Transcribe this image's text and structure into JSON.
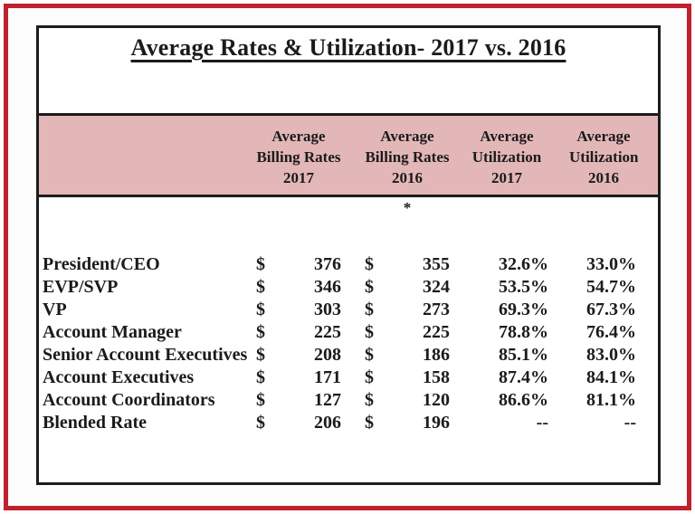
{
  "title": "Average Rates & Utilization- 2017 vs. 2016",
  "colors": {
    "frame_red": "#c0212e",
    "header_pink": "#e3b6b7",
    "line_black": "#1c1c1c"
  },
  "table": {
    "currency_symbol": "$",
    "footnote_marker": "*",
    "header": {
      "col1": [
        "Average",
        "Billing Rates",
        "2017"
      ],
      "col2": [
        "Average",
        "Billing Rates",
        "2016"
      ],
      "col3": [
        "Average",
        "Utilization",
        "2017"
      ],
      "col4": [
        "Average",
        "Utilization",
        "2016"
      ]
    },
    "rows": [
      {
        "label": "President/CEO",
        "rate_2017": "376",
        "rate_2016": "355",
        "util_2017": "32.6%",
        "util_2016": "33.0%"
      },
      {
        "label": "EVP/SVP",
        "rate_2017": "346",
        "rate_2016": "324",
        "util_2017": "53.5%",
        "util_2016": "54.7%"
      },
      {
        "label": "VP",
        "rate_2017": "303",
        "rate_2016": "273",
        "util_2017": "69.3%",
        "util_2016": "67.3%"
      },
      {
        "label": "Account Manager",
        "rate_2017": "225",
        "rate_2016": "225",
        "util_2017": "78.8%",
        "util_2016": "76.4%"
      },
      {
        "label": "Senior Account Executives",
        "rate_2017": "208",
        "rate_2016": "186",
        "util_2017": "85.1%",
        "util_2016": "83.0%"
      },
      {
        "label": "Account Executives",
        "rate_2017": "171",
        "rate_2016": "158",
        "util_2017": "87.4%",
        "util_2016": "84.1%"
      },
      {
        "label": "Account Coordinators",
        "rate_2017": "127",
        "rate_2016": "120",
        "util_2017": "86.6%",
        "util_2016": "81.1%"
      },
      {
        "label": "Blended Rate",
        "rate_2017": "206",
        "rate_2016": "196",
        "util_2017": "--",
        "util_2016": "--"
      }
    ]
  }
}
